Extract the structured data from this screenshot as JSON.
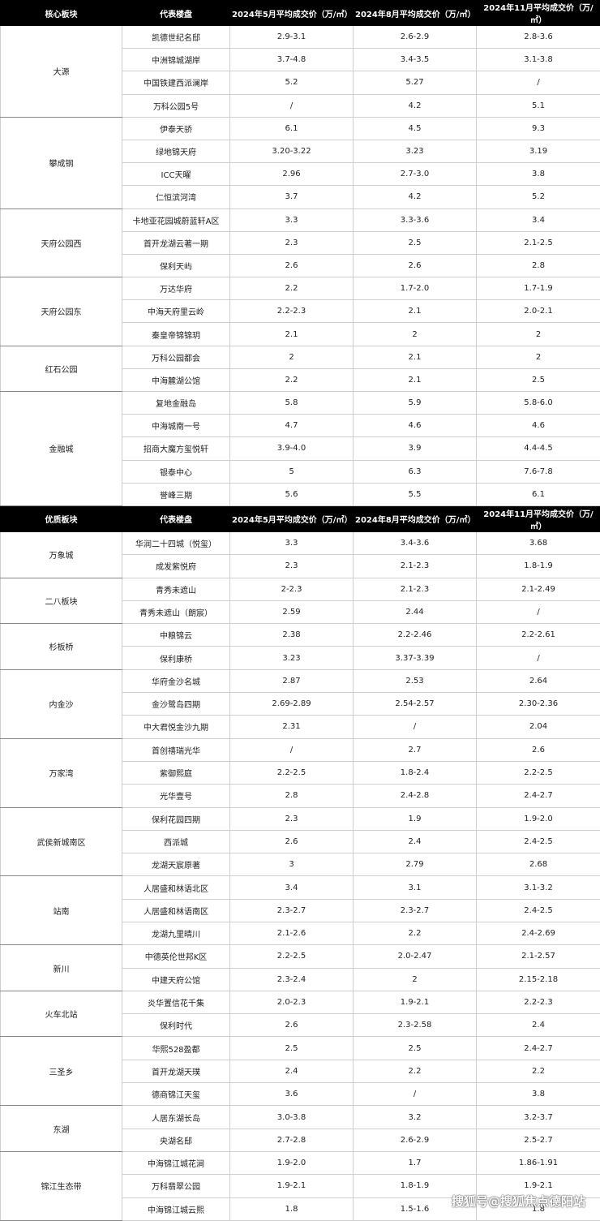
{
  "tables": [
    {
      "headers": [
        "核心板块",
        "代表楼盘",
        "2024年5月平均成交价（万/㎡）",
        "2024年8月平均成交价（万/㎡）",
        "2024年11月平均成交价（万/㎡）"
      ],
      "groups": [
        {
          "name": "大源",
          "rows": [
            [
              "凯德世纪名邸",
              "2.9-3.1",
              "2.6-2.9",
              "2.8-3.6"
            ],
            [
              "中洲锦城湖岸",
              "3.7-4.8",
              "3.4-3.5",
              "3.1-3.8"
            ],
            [
              "中国铁建西派澜岸",
              "5.2",
              "5.27",
              "/"
            ],
            [
              "万科公园5号",
              "/",
              "4.2",
              "5.1"
            ]
          ]
        },
        {
          "name": "攀成钢",
          "rows": [
            [
              "伊泰天骄",
              "6.1",
              "4.5",
              "9.3"
            ],
            [
              "绿地锦天府",
              "3.20-3.22",
              "3.23",
              "3.19"
            ],
            [
              "ICC天曜",
              "2.96",
              "2.7-3.0",
              "3.8"
            ],
            [
              "仁恒滨河湾",
              "3.7",
              "4.2",
              "5.2"
            ]
          ]
        },
        {
          "name": "天府公园西",
          "rows": [
            [
              "卡地亚花园城蔚蓝轩A区",
              "3.3",
              "3.3-3.6",
              "3.4"
            ],
            [
              "首开龙湖云著一期",
              "2.3",
              "2.5",
              "2.1-2.5"
            ],
            [
              "保利天屿",
              "2.6",
              "2.6",
              "2.8"
            ]
          ]
        },
        {
          "name": "天府公园东",
          "rows": [
            [
              "万达华府",
              "2.2",
              "1.7-2.0",
              "1.7-1.9"
            ],
            [
              "中海天府里云岭",
              "2.2-2.3",
              "2.1",
              "2.0-2.1"
            ],
            [
              "秦皇帝锦锦玥",
              "2.1",
              "2",
              "2"
            ]
          ]
        },
        {
          "name": "红石公园",
          "rows": [
            [
              "万科公园都会",
              "2",
              "2.1",
              "2"
            ],
            [
              "中海麓湖公馆",
              "2.2",
              "2.1",
              "2.5"
            ]
          ]
        },
        {
          "name": "金融城",
          "rows": [
            [
              "复地金融岛",
              "5.8",
              "5.9",
              "5.8-6.0"
            ],
            [
              "中海城南一号",
              "4.7",
              "4.6",
              "4.6"
            ],
            [
              "招商大魔方玺悦轩",
              "3.9-4.0",
              "3.9",
              "4.4-4.5"
            ],
            [
              "银泰中心",
              "5",
              "6.3",
              "7.6-7.8"
            ],
            [
              "誉峰三期",
              "5.6",
              "5.5",
              "6.1"
            ]
          ]
        }
      ]
    },
    {
      "headers": [
        "优质板块",
        "代表楼盘",
        "2024年5月平均成交价（万/㎡）",
        "2024年8月平均成交价（万/㎡）",
        "2024年11月平均成交价（万/㎡）"
      ],
      "groups": [
        {
          "name": "万象城",
          "rows": [
            [
              "华润二十四城（悦玺）",
              "3.3",
              "3.4-3.6",
              "3.68"
            ],
            [
              "成发紫悦府",
              "2.3",
              "2.1-2.3",
              "1.8-1.9"
            ]
          ]
        },
        {
          "name": "二八板块",
          "rows": [
            [
              "青秀未遮山",
              "2-2.3",
              "2.1-2.3",
              "2.1-2.49"
            ],
            [
              "青秀未遮山（朗宸）",
              "2.59",
              "2.44",
              "/"
            ]
          ]
        },
        {
          "name": "杉板桥",
          "rows": [
            [
              "中粮锦云",
              "2.38",
              "2.2-2.46",
              "2.2-2.61"
            ],
            [
              "保利康桥",
              "3.23",
              "3.37-3.39",
              "/"
            ]
          ]
        },
        {
          "name": "内金沙",
          "rows": [
            [
              "华府金沙名城",
              "2.87",
              "2.53",
              "2.64"
            ],
            [
              "金沙鹭岛四期",
              "2.69-2.89",
              "2.54-2.57",
              "2.30-2.36"
            ],
            [
              "中大君悦金沙九期",
              "2.31",
              "/",
              "2.04"
            ]
          ]
        },
        {
          "name": "万家湾",
          "rows": [
            [
              "首创禧瑞光华",
              "/",
              "2.7",
              "2.6"
            ],
            [
              "紫御熙庭",
              "2.2-2.5",
              "1.8-2.4",
              "2.2-2.5"
            ],
            [
              "光华壹号",
              "2.8",
              "2.4-2.8",
              "2.4-2.7"
            ]
          ]
        },
        {
          "name": "武侯新城南区",
          "rows": [
            [
              "保利花园四期",
              "2.3",
              "1.9",
              "1.9-2.0"
            ],
            [
              "西派城",
              "2.6",
              "2.4",
              "2.4-2.5"
            ],
            [
              "龙湖天宸原著",
              "3",
              "2.79",
              "2.68"
            ]
          ]
        },
        {
          "name": "站南",
          "rows": [
            [
              "人居盛和林语北区",
              "3.4",
              "3.1",
              "3.1-3.2"
            ],
            [
              "人居盛和林语南区",
              "2.3-2.7",
              "2.3-2.7",
              "2.4-2.5"
            ],
            [
              "龙湖九里晴川",
              "2.1-2.6",
              "2.2",
              "2.4-2.69"
            ]
          ]
        },
        {
          "name": "新川",
          "rows": [
            [
              "中德英伦世邦K区",
              "2.2-2.5",
              "2.0-2.47",
              "2.1-2.57"
            ],
            [
              "中建天府公馆",
              "2.3-2.4",
              "2",
              "2.15-2.18"
            ]
          ]
        },
        {
          "name": "火车北站",
          "rows": [
            [
              "炎华置信花千集",
              "2.0-2.3",
              "1.9-2.1",
              "2.2-2.3"
            ],
            [
              "保利时代",
              "2.6",
              "2.3-2.58",
              "2.4"
            ]
          ]
        },
        {
          "name": "三圣乡",
          "rows": [
            [
              "华熙528盈都",
              "2.5",
              "2.5",
              "2.4-2.7"
            ],
            [
              "首开龙湖天璞",
              "2.4",
              "2.2",
              "2.2"
            ],
            [
              "德商锦江天玺",
              "3.6",
              "/",
              "3.8"
            ]
          ]
        },
        {
          "name": "东湖",
          "rows": [
            [
              "人居东湖长岛",
              "3.0-3.8",
              "3.2",
              "3.2-3.7"
            ],
            [
              "央湖名邸",
              "2.7-2.8",
              "2.6-2.9",
              "2.5-2.7"
            ]
          ]
        },
        {
          "name": "锦江生态带",
          "rows": [
            [
              "中海锦江城花涧",
              "1.9-2.0",
              "1.7",
              "1.86-1.91"
            ],
            [
              "万科翡翠公园",
              "1.9-2.1",
              "1.8-1.9",
              "1.9-2.1"
            ],
            [
              "中海锦江城云熙",
              "1.8",
              "1.5-1.6",
              "1.8"
            ]
          ]
        }
      ]
    }
  ],
  "watermark": "搜狐号@搜狐焦点德阳站"
}
